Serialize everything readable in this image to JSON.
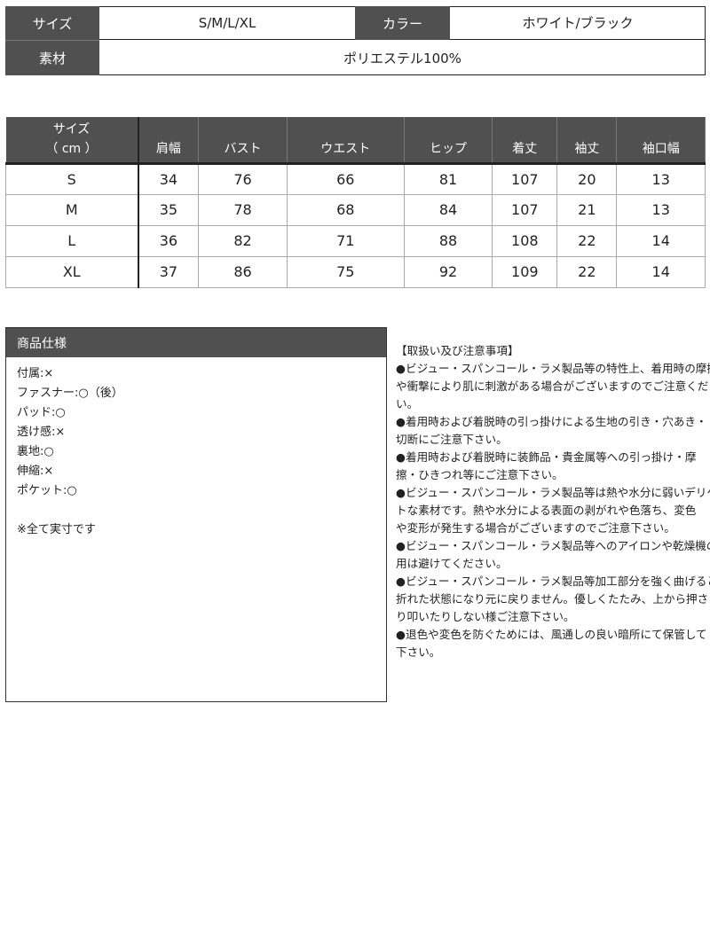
{
  "spec": {
    "size_label": "サイズ",
    "size_value": "S/M/L/XL",
    "color_label": "カラー",
    "color_value": "ホワイト/ブラック",
    "material_label": "素材",
    "material_value": "ポリエステル100%"
  },
  "size_table": {
    "header_line1": "サイズ",
    "header_line2": "（ cm ）",
    "columns": [
      "肩幅",
      "バスト",
      "ウエスト",
      "ヒップ",
      "着丈",
      "袖丈",
      "袖口幅"
    ],
    "rows": [
      {
        "size": "S",
        "values": [
          "34",
          "76",
          "66",
          "81",
          "107",
          "20",
          "13"
        ]
      },
      {
        "size": "M",
        "values": [
          "35",
          "78",
          "68",
          "84",
          "107",
          "21",
          "13"
        ]
      },
      {
        "size": "L",
        "values": [
          "36",
          "82",
          "71",
          "88",
          "108",
          "22",
          "14"
        ]
      },
      {
        "size": "XL",
        "values": [
          "37",
          "86",
          "75",
          "92",
          "109",
          "22",
          "14"
        ]
      }
    ]
  },
  "product_spec": {
    "title": "商品仕様",
    "items": [
      "付属:×",
      "ファスナー:○（後）",
      "パッド:○",
      "透け感:×",
      "裏地:○",
      "伸縮:×",
      "ポケット:○"
    ],
    "note": "※全て実寸です"
  },
  "care": {
    "title": "【取扱い及び注意事項】",
    "lines": [
      "●ビジュー・スパンコール・ラメ製品等の特性上、着用時の摩擦",
      "や衝撃により肌に刺激がある場合がございますのでご注意くださ",
      "い。",
      "●着用時および着脱時の引っ掛けによる生地の引き・穴あき・",
      "切断にご注意下さい。",
      "●着用時および着脱時に装飾品・貴金属等への引っ掛け・摩",
      "擦・ひきつれ等にご注意下さい。",
      "●ビジュー・スパンコール・ラメ製品等は熱や水分に弱いデリケー",
      "トな素材です。熱や水分による表面の剥がれや色落ち、変色",
      "や変形が発生する場合がございますのでご注意下さい。",
      "●ビジュー・スパンコール・ラメ製品等へのアイロンや乾燥機の使",
      "用は避けてください。",
      "●ビジュー・スパンコール・ラメ製品等加工部分を強く曲げると",
      "折れた状態になり元に戻りません。優しくたたみ、上から押さえた",
      "り叩いたりしない様ご注意下さい。",
      "●退色や変色を防ぐためには、風通しの良い暗所にて保管して",
      "下さい。"
    ]
  }
}
